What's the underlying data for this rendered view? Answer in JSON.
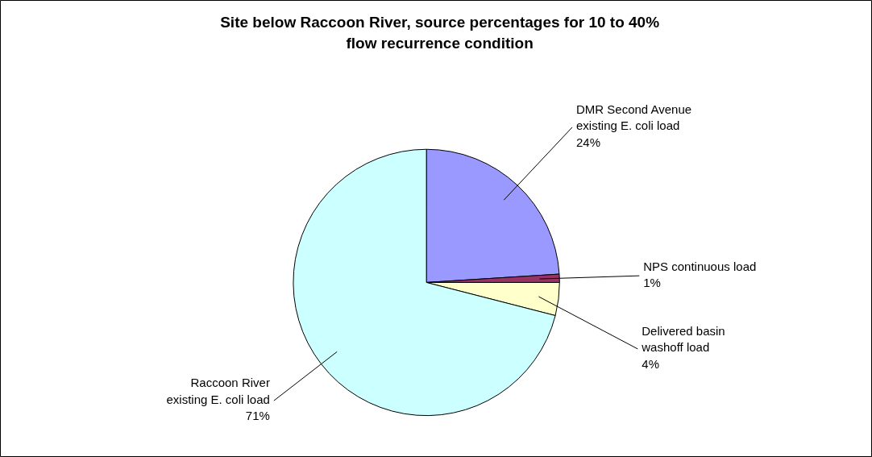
{
  "chart_data": {
    "type": "pie",
    "title": "Site below Raccoon River, source percentages for 10 to 40% flow recurrence condition",
    "categories": [
      "DMR Second Avenue existing E. coli load",
      "NPS continuous load",
      "Delivered basin washoff load",
      "Raccoon River existing E. coli load"
    ],
    "values": [
      24,
      1,
      4,
      71
    ],
    "colors": [
      "#9999ff",
      "#993366",
      "#ffffcc",
      "#ccffff"
    ],
    "value_labels": [
      "24%",
      "1%",
      "4%",
      "71%"
    ]
  }
}
